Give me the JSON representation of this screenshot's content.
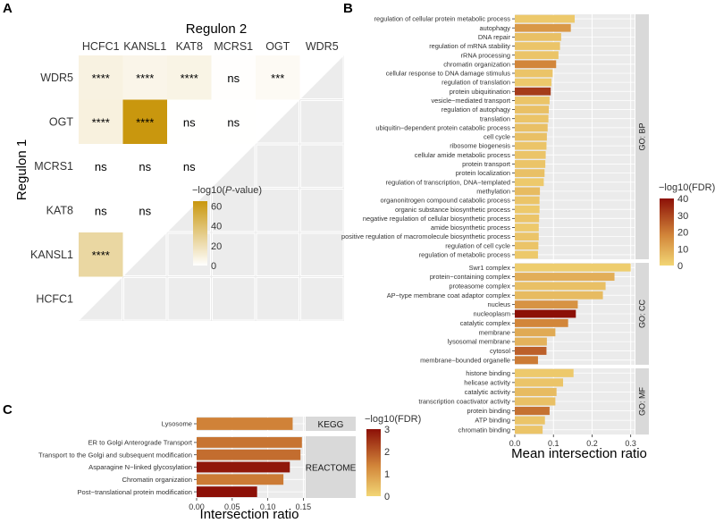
{
  "chart_data": [
    {
      "panel": "A",
      "type": "heatmap",
      "xlabel": "Regulon 2",
      "ylabel": "Regulon 1",
      "columns": [
        "HCFC1",
        "KANSL1",
        "KAT8",
        "MCRS1",
        "OGT",
        "WDR5"
      ],
      "rows": [
        "WDR5",
        "OGT",
        "MCRS1",
        "KAT8",
        "KANSL1",
        "HCFC1"
      ],
      "cells": [
        {
          "row": "WDR5",
          "col": "HCFC1",
          "neglog10p": 8,
          "label": "****"
        },
        {
          "row": "WDR5",
          "col": "KANSL1",
          "neglog10p": 6,
          "label": "****"
        },
        {
          "row": "WDR5",
          "col": "KAT8",
          "neglog10p": 7,
          "label": "****"
        },
        {
          "row": "WDR5",
          "col": "MCRS1",
          "neglog10p": 0.5,
          "label": "ns"
        },
        {
          "row": "WDR5",
          "col": "OGT",
          "neglog10p": 3,
          "label": "***"
        },
        {
          "row": "OGT",
          "col": "HCFC1",
          "neglog10p": 9,
          "label": "****"
        },
        {
          "row": "OGT",
          "col": "KANSL1",
          "neglog10p": 65,
          "label": "****"
        },
        {
          "row": "OGT",
          "col": "KAT8",
          "neglog10p": 0.3,
          "label": "ns"
        },
        {
          "row": "OGT",
          "col": "MCRS1",
          "neglog10p": 0.3,
          "label": "ns"
        },
        {
          "row": "MCRS1",
          "col": "HCFC1",
          "neglog10p": 0,
          "label": "ns"
        },
        {
          "row": "MCRS1",
          "col": "KANSL1",
          "neglog10p": 0,
          "label": "ns"
        },
        {
          "row": "MCRS1",
          "col": "KAT8",
          "neglog10p": 0,
          "label": "ns"
        },
        {
          "row": "KAT8",
          "col": "HCFC1",
          "neglog10p": 0,
          "label": "ns"
        },
        {
          "row": "KAT8",
          "col": "KANSL1",
          "neglog10p": 0,
          "label": "ns"
        },
        {
          "row": "KANSL1",
          "col": "HCFC1",
          "neglog10p": 25,
          "label": "****"
        }
      ],
      "legend": {
        "title": "−log10(P-value)",
        "title_prefix": "−log10(",
        "title_italic": "P",
        "title_suffix": "-value)",
        "min": 0,
        "max": 65,
        "ticks": [
          0,
          20,
          40,
          60
        ],
        "low_color": "#ffffff",
        "high_color": "#c9970e"
      }
    },
    {
      "panel": "B",
      "type": "bar",
      "orientation": "horizontal",
      "xlabel": "Mean intersection ratio",
      "xlim": [
        0,
        0.31
      ],
      "xticks": [
        "0.0",
        "0.1",
        "0.2",
        "0.3"
      ],
      "xtick_values": [
        0,
        0.1,
        0.2,
        0.3
      ],
      "facets": [
        {
          "name": "GO: BP",
          "bars": [
            {
              "label": "regulation of cellular protein metabolic process",
              "value": 0.155,
              "fdr": 3
            },
            {
              "label": "autophagy",
              "value": 0.145,
              "fdr": 14
            },
            {
              "label": "DNA repair",
              "value": 0.12,
              "fdr": 5
            },
            {
              "label": "regulation of mRNA stability",
              "value": 0.117,
              "fdr": 4
            },
            {
              "label": "rRNA processing",
              "value": 0.113,
              "fdr": 4
            },
            {
              "label": "chromatin organization",
              "value": 0.107,
              "fdr": 18
            },
            {
              "label": "cellular response to DNA damage stimulus",
              "value": 0.098,
              "fdr": 4
            },
            {
              "label": "regulation of translation",
              "value": 0.095,
              "fdr": 3
            },
            {
              "label": "protein ubiquitination",
              "value": 0.093,
              "fdr": 32
            },
            {
              "label": "vesicle−mediated transport",
              "value": 0.09,
              "fdr": 4
            },
            {
              "label": "regulation of autophagy",
              "value": 0.088,
              "fdr": 5
            },
            {
              "label": "translation",
              "value": 0.087,
              "fdr": 4
            },
            {
              "label": "ubiquitin−dependent protein catabolic process",
              "value": 0.085,
              "fdr": 5
            },
            {
              "label": "cell cycle",
              "value": 0.083,
              "fdr": 5
            },
            {
              "label": "ribosome biogenesis",
              "value": 0.082,
              "fdr": 4
            },
            {
              "label": "cellular amide metabolic process",
              "value": 0.08,
              "fdr": 4
            },
            {
              "label": "protein transport",
              "value": 0.079,
              "fdr": 4
            },
            {
              "label": "protein localization",
              "value": 0.077,
              "fdr": 5
            },
            {
              "label": "regulation of transcription, DNA−templated",
              "value": 0.075,
              "fdr": 3
            },
            {
              "label": "methylation",
              "value": 0.065,
              "fdr": 6
            },
            {
              "label": "organonitrogen compound catabolic process",
              "value": 0.064,
              "fdr": 4
            },
            {
              "label": "organic substance biosynthetic process",
              "value": 0.064,
              "fdr": 3
            },
            {
              "label": "negative regulation of cellular biosynthetic process",
              "value": 0.063,
              "fdr": 4
            },
            {
              "label": "amide biosynthetic process",
              "value": 0.062,
              "fdr": 3
            },
            {
              "label": "positive regulation of macromolecule biosynthetic process",
              "value": 0.062,
              "fdr": 4
            },
            {
              "label": "regulation of cell cycle",
              "value": 0.061,
              "fdr": 4
            },
            {
              "label": "regulation of metabolic process",
              "value": 0.06,
              "fdr": 3
            }
          ]
        },
        {
          "name": "GO: CC",
          "bars": [
            {
              "label": "Swr1 complex",
              "value": 0.3,
              "fdr": 2
            },
            {
              "label": "protein−containing complex",
              "value": 0.258,
              "fdr": 9
            },
            {
              "label": "proteasome complex",
              "value": 0.235,
              "fdr": 5
            },
            {
              "label": "AP−type membrane coat adaptor complex",
              "value": 0.228,
              "fdr": 6
            },
            {
              "label": "nucleus",
              "value": 0.163,
              "fdr": 15
            },
            {
              "label": "nucleoplasm",
              "value": 0.158,
              "fdr": 40
            },
            {
              "label": "catalytic complex",
              "value": 0.138,
              "fdr": 18
            },
            {
              "label": "membrane",
              "value": 0.105,
              "fdr": 10
            },
            {
              "label": "lysosomal membrane",
              "value": 0.083,
              "fdr": 8
            },
            {
              "label": "cytosol",
              "value": 0.082,
              "fdr": 25
            },
            {
              "label": "membrane−bounded organelle",
              "value": 0.06,
              "fdr": 20
            }
          ]
        },
        {
          "name": "GO: MF",
          "bars": [
            {
              "label": "histone binding",
              "value": 0.152,
              "fdr": 3
            },
            {
              "label": "helicase activity",
              "value": 0.125,
              "fdr": 4
            },
            {
              "label": "catalytic activity",
              "value": 0.108,
              "fdr": 6
            },
            {
              "label": "transcription coactivator activity",
              "value": 0.105,
              "fdr": 5
            },
            {
              "label": "protein binding",
              "value": 0.09,
              "fdr": 22
            },
            {
              "label": "ATP binding",
              "value": 0.078,
              "fdr": 4
            },
            {
              "label": "chromatin binding",
              "value": 0.072,
              "fdr": 4
            }
          ]
        }
      ],
      "legend": {
        "title": "−log10(FDR)",
        "min": 0,
        "max": 40,
        "ticks": [
          0,
          10,
          20,
          30,
          40
        ]
      }
    },
    {
      "panel": "C",
      "type": "bar",
      "orientation": "horizontal",
      "xlabel": "Intersection ratio",
      "xlim": [
        0,
        0.152
      ],
      "xticks": [
        "0.00",
        "0.05",
        "0.10",
        "0.15"
      ],
      "xtick_values": [
        0,
        0.05,
        0.1,
        0.15
      ],
      "facets": [
        {
          "name": "KEGG",
          "bars": [
            {
              "label": "Lysosome",
              "value": 0.135,
              "fdr": 1.4
            }
          ]
        },
        {
          "name": "REACTOME",
          "bars": [
            {
              "label": "ER to Golgi Anterograde Transport",
              "value": 0.148,
              "fdr": 1.6
            },
            {
              "label": "Transport to the Golgi and subsequent modification",
              "value": 0.146,
              "fdr": 1.7
            },
            {
              "label": "Asparagine N−linked glycosylation",
              "value": 0.131,
              "fdr": 2.9
            },
            {
              "label": "Chromatin organization",
              "value": 0.122,
              "fdr": 1.5
            },
            {
              "label": "Post−translational protein modification",
              "value": 0.085,
              "fdr": 3
            }
          ]
        }
      ],
      "legend": {
        "title": "−log10(FDR)",
        "min": 0,
        "max": 3,
        "ticks": [
          0,
          1,
          2,
          3
        ]
      }
    }
  ],
  "panel_letters": {
    "a": "A",
    "b": "B",
    "c": "C"
  },
  "colors": {
    "grid_bg": "#ebebeb",
    "grid_line": "#ffffff",
    "strip_bg": "#d9d9d9",
    "fdr_low": "#f2d675",
    "fdr_mid": "#d2863a",
    "fdr_high": "#8c1007",
    "empty_cell": "#ececec"
  }
}
